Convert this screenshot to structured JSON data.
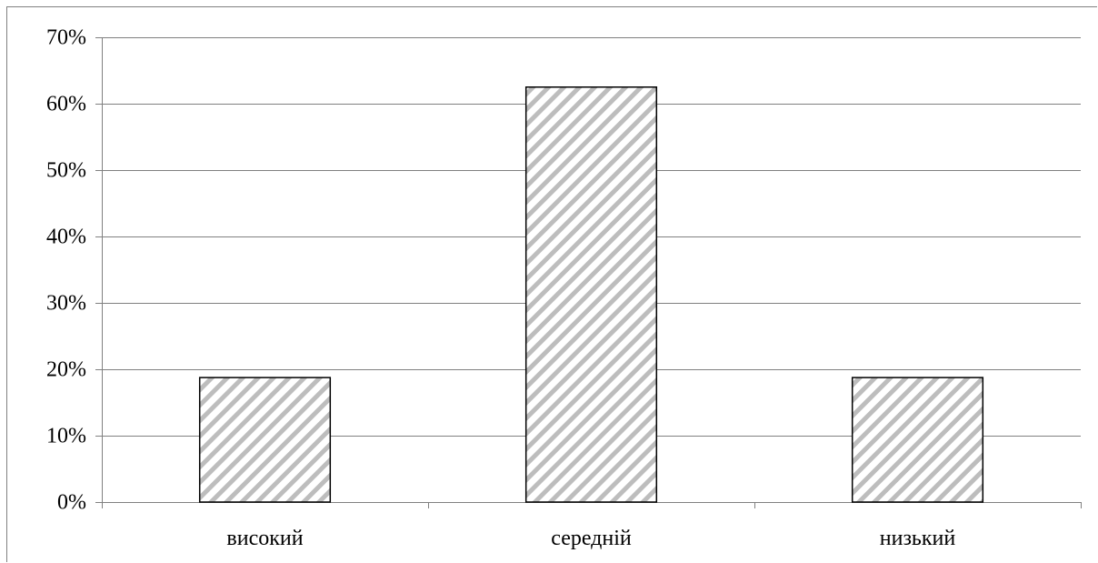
{
  "chart_data": {
    "type": "bar",
    "categories": [
      "високий",
      "середній",
      "низький"
    ],
    "values": [
      18.75,
      62.5,
      18.75
    ],
    "value_unit": "%",
    "ylim": [
      0,
      70
    ],
    "yticks": [
      0,
      10,
      20,
      30,
      40,
      50,
      60,
      70
    ],
    "ytick_labels": [
      "0%",
      "10%",
      "20%",
      "30%",
      "40%",
      "50%",
      "60%",
      "70%"
    ],
    "grid": true,
    "legend": "none",
    "title": "",
    "xlabel": "",
    "ylabel": "",
    "colors": {
      "bar_fill": "#ffffff",
      "bar_hatch": "#bdbdbd",
      "bar_edge": "#000000",
      "gridline": "#808080",
      "axis": "#808080"
    }
  }
}
